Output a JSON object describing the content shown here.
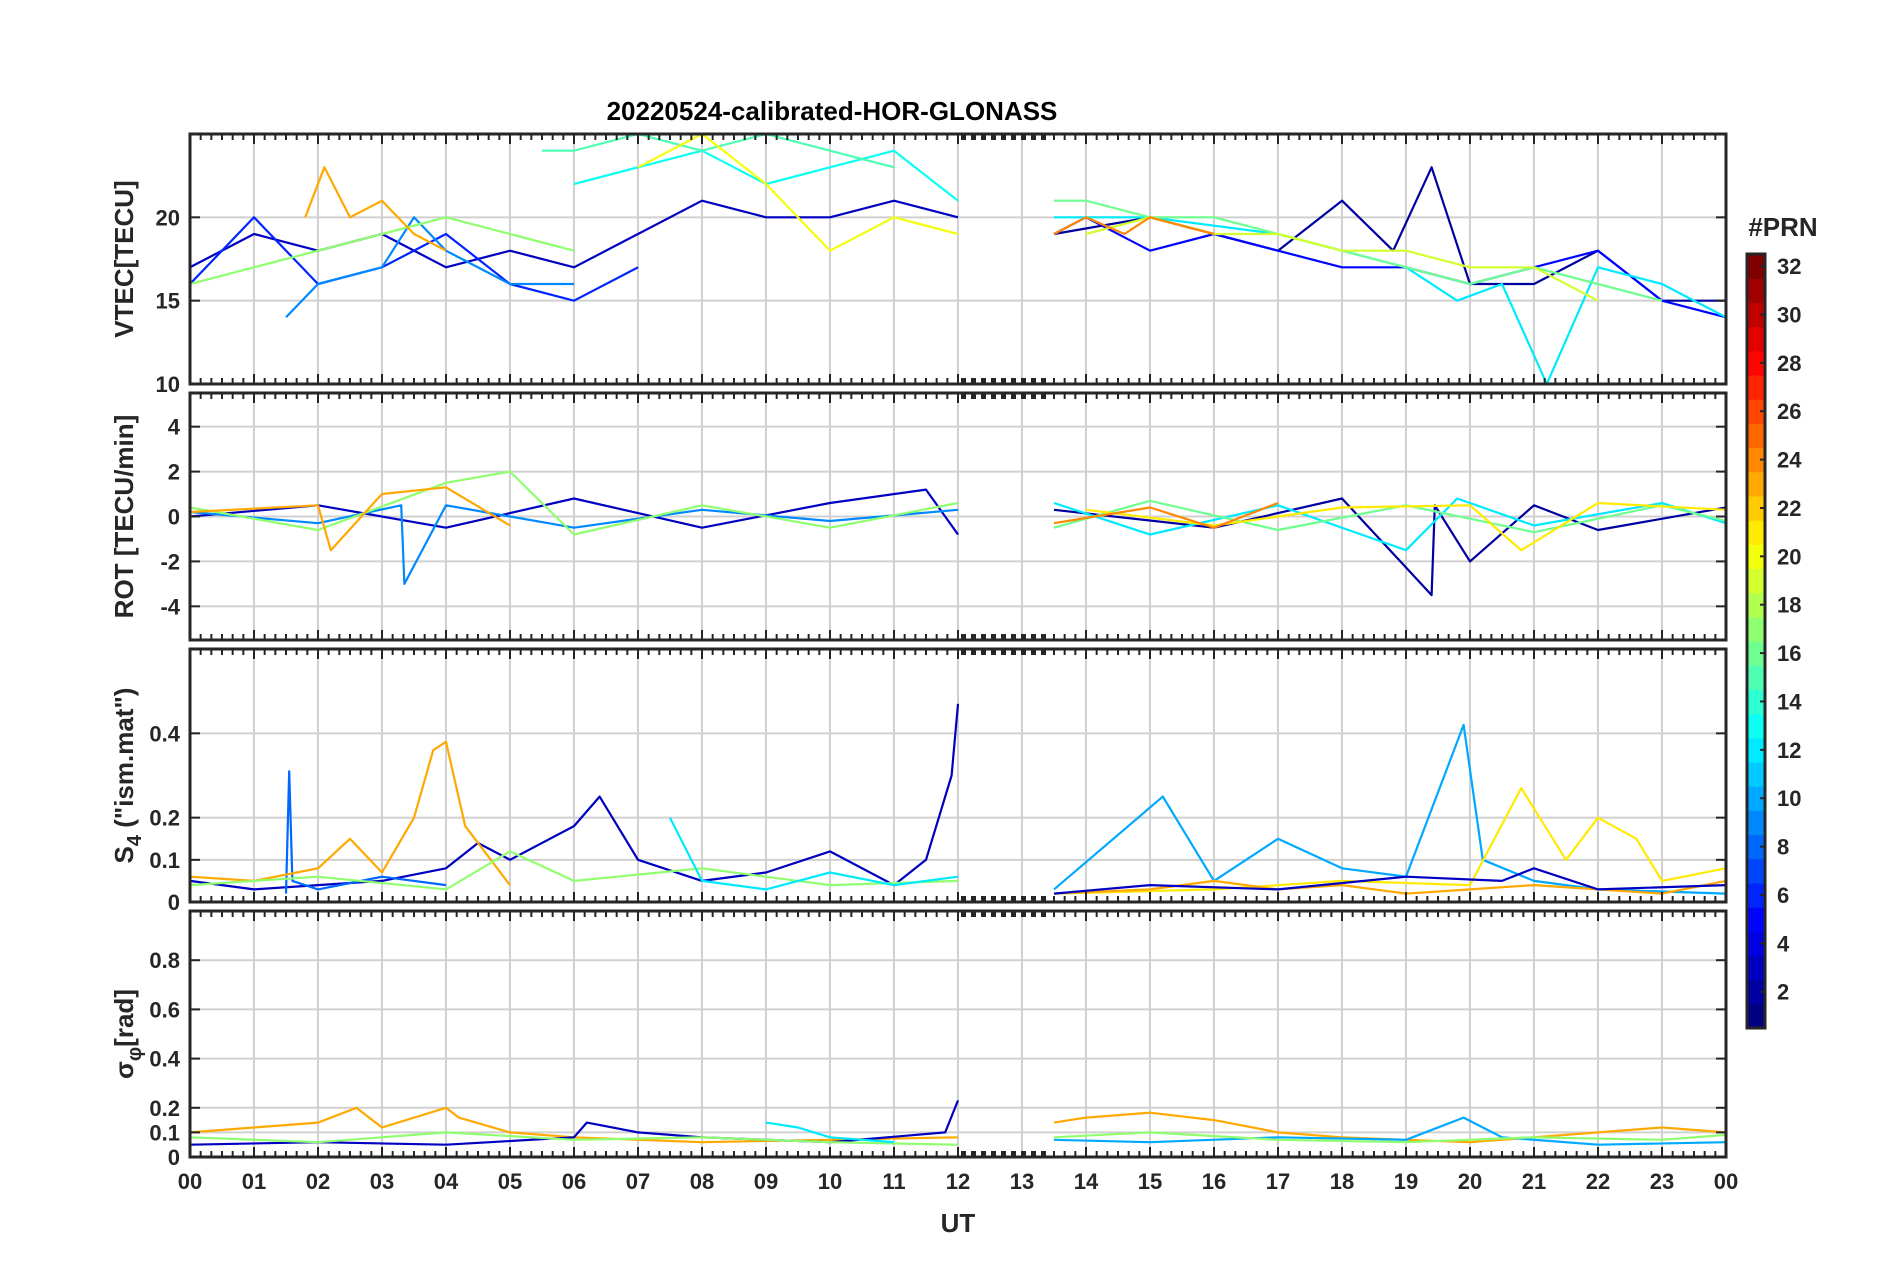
{
  "chart_data": {
    "type": "line",
    "title": "20220524-calibrated-HOR-GLONASS",
    "xlabel": "UT",
    "x_ticks": [
      "00",
      "01",
      "02",
      "03",
      "04",
      "05",
      "06",
      "07",
      "08",
      "09",
      "10",
      "11",
      "12",
      "13",
      "14",
      "15",
      "16",
      "17",
      "18",
      "19",
      "20",
      "21",
      "22",
      "23",
      "00"
    ],
    "xlim": [
      0,
      24
    ],
    "data_gap_hours": [
      12,
      13.5
    ],
    "colorbar": {
      "label": "#PRN",
      "range": [
        1,
        32
      ],
      "ticks": [
        "32",
        "30",
        "28",
        "26",
        "24",
        "22",
        "20",
        "18",
        "16",
        "14",
        "12",
        "10",
        "8",
        "6",
        "4",
        "2"
      ]
    },
    "panels": [
      {
        "ylabel": "VTEC[TECU]",
        "ylim": [
          10,
          25
        ],
        "y_ticks": [
          "20",
          "15",
          "10"
        ],
        "tick_values": [
          20,
          15,
          10
        ],
        "series": [
          {
            "prn": 3,
            "x": [
              0,
              1,
              2,
              3,
              4,
              5,
              6,
              7,
              8,
              9,
              10,
              11,
              12
            ],
            "values": [
              17,
              19,
              18,
              19,
              17,
              18,
              17,
              19,
              21,
              20,
              20,
              21,
              20
            ]
          },
          {
            "prn": 6,
            "x": [
              0,
              1,
              2,
              3,
              4,
              5,
              6,
              7
            ],
            "values": [
              16,
              20,
              16,
              17,
              19,
              16,
              15,
              17
            ]
          },
          {
            "prn": 9,
            "x": [
              1.5,
              2,
              3,
              3.5,
              4,
              5,
              6
            ],
            "values": [
              14,
              16,
              17,
              20,
              18,
              16,
              16
            ]
          },
          {
            "prn": 13,
            "x": [
              6,
              7,
              8,
              9,
              10,
              11,
              12
            ],
            "values": [
              22,
              23,
              24,
              22,
              23,
              24,
              21
            ]
          },
          {
            "prn": 15,
            "x": [
              5.5,
              6,
              7,
              8,
              9,
              10,
              11
            ],
            "values": [
              24,
              24,
              25,
              24,
              25,
              24,
              23
            ]
          },
          {
            "prn": 17,
            "x": [
              0,
              1,
              2,
              3,
              4,
              5,
              6
            ],
            "values": [
              16,
              17,
              18,
              19,
              20,
              19,
              18
            ]
          },
          {
            "prn": 20,
            "x": [
              7,
              8,
              9,
              10,
              11,
              12
            ],
            "values": [
              23,
              25,
              22,
              18,
              20,
              19
            ]
          },
          {
            "prn": 23,
            "x": [
              1.8,
              2.1,
              2.5,
              3,
              3.5,
              4
            ],
            "values": [
              20,
              23,
              20,
              21,
              19,
              18
            ]
          },
          {
            "prn": 2,
            "x": [
              13.5,
              15,
              16,
              17,
              18,
              18.8,
              19.4,
              20,
              21,
              22,
              23,
              24
            ],
            "values": [
              19,
              20,
              19,
              18,
              21,
              18,
              23,
              16,
              16,
              18,
              15,
              15
            ]
          },
          {
            "prn": 5,
            "x": [
              13.5,
              14,
              15,
              16,
              17,
              18,
              19,
              20,
              21,
              22,
              23,
              24
            ],
            "values": [
              19,
              20,
              18,
              19,
              18,
              17,
              17,
              16,
              17,
              18,
              15,
              14
            ]
          },
          {
            "prn": 12,
            "x": [
              13.5,
              15,
              17,
              18,
              19,
              19.8,
              20.5,
              21.2,
              22,
              23,
              24
            ],
            "values": [
              20,
              20,
              19,
              18,
              17,
              15,
              16,
              10,
              17,
              16,
              14
            ]
          },
          {
            "prn": 16,
            "x": [
              13.5,
              14,
              15,
              16,
              17,
              18,
              19,
              20,
              21,
              22,
              23
            ],
            "values": [
              21,
              21,
              20,
              20,
              19,
              18,
              17,
              16,
              17,
              16,
              15
            ]
          },
          {
            "prn": 19,
            "x": [
              14,
              15,
              16,
              17,
              18,
              19,
              20,
              21,
              22
            ],
            "values": [
              19,
              20,
              19,
              19,
              18,
              18,
              17,
              17,
              15
            ]
          },
          {
            "prn": 24,
            "x": [
              13.5,
              14,
              14.6,
              15,
              16
            ],
            "values": [
              19,
              20,
              19,
              20,
              19
            ]
          }
        ]
      },
      {
        "ylabel": "ROT [TECU/min]",
        "ylim": [
          -5.5,
          5.5
        ],
        "y_ticks": [
          "4",
          "2",
          "0",
          "-2",
          "-4"
        ],
        "tick_values": [
          4,
          2,
          0,
          -2,
          -4
        ],
        "series": [
          {
            "prn": 3,
            "x": [
              0,
              2,
              4,
              6,
              8,
              10,
              11.5,
              12
            ],
            "values": [
              0,
              0.5,
              -0.5,
              0.8,
              -0.5,
              0.6,
              1.2,
              -0.8
            ]
          },
          {
            "prn": 9,
            "x": [
              0,
              2,
              3.3,
              3.35,
              4,
              6,
              8,
              10,
              12
            ],
            "values": [
              0.2,
              -0.3,
              0.5,
              -3,
              0.5,
              -0.5,
              0.3,
              -0.2,
              0.3
            ]
          },
          {
            "prn": 17,
            "x": [
              0,
              2,
              4,
              5,
              6,
              8,
              10,
              12
            ],
            "values": [
              0.4,
              -0.6,
              1.5,
              2,
              -0.8,
              0.5,
              -0.5,
              0.6
            ]
          },
          {
            "prn": 23,
            "x": [
              0,
              2,
              2.2,
              3,
              4,
              5
            ],
            "values": [
              0.2,
              0.5,
              -1.5,
              1,
              1.3,
              -0.4
            ]
          },
          {
            "prn": 2,
            "x": [
              13.5,
              16,
              18,
              19.4,
              19.45,
              20,
              21,
              22,
              24
            ],
            "values": [
              0.3,
              -0.5,
              0.8,
              -3.5,
              0.5,
              -2,
              0.5,
              -0.6,
              0.4
            ]
          },
          {
            "prn": 12,
            "x": [
              13.5,
              15,
              17,
              19,
              19.8,
              21,
              23,
              24
            ],
            "values": [
              0.6,
              -0.8,
              0.5,
              -1.5,
              0.8,
              -0.4,
              0.6,
              -0.3
            ]
          },
          {
            "prn": 16,
            "x": [
              13.5,
              15,
              17,
              19,
              21,
              23,
              24
            ],
            "values": [
              -0.5,
              0.7,
              -0.6,
              0.5,
              -0.7,
              0.5,
              -0.2
            ]
          },
          {
            "prn": 21,
            "x": [
              14,
              16,
              18,
              20,
              20.8,
              22,
              24
            ],
            "values": [
              0.3,
              -0.4,
              0.4,
              0.5,
              -1.5,
              0.6,
              0.3
            ]
          },
          {
            "prn": 24,
            "x": [
              13.5,
              15,
              16,
              17
            ],
            "values": [
              -0.3,
              0.4,
              -0.5,
              0.6
            ]
          }
        ]
      },
      {
        "ylabel": "S4 (\"ism.mat\")",
        "ylabel_base": "S",
        "ylabel_sub": "4",
        "ylabel_tail": " (\"ism.mat\")",
        "ylim": [
          0,
          0.6
        ],
        "y_ticks": [
          "0.4",
          "0.2",
          "0.1",
          "0"
        ],
        "tick_values": [
          0.4,
          0.2,
          0.1,
          0
        ],
        "series": [
          {
            "prn": 3,
            "x": [
              0,
              1,
              2,
              3,
              4,
              4.5,
              5,
              6,
              6.4,
              7,
              8,
              9,
              10,
              11,
              11.5,
              11.9,
              12
            ],
            "values": [
              0.05,
              0.03,
              0.04,
              0.05,
              0.08,
              0.14,
              0.1,
              0.18,
              0.25,
              0.1,
              0.05,
              0.07,
              0.12,
              0.04,
              0.1,
              0.3,
              0.47
            ]
          },
          {
            "prn": 8,
            "x": [
              1.5,
              1.55,
              1.6,
              2,
              3,
              4
            ],
            "values": [
              0.02,
              0.31,
              0.05,
              0.03,
              0.06,
              0.04
            ]
          },
          {
            "prn": 23,
            "x": [
              0,
              1,
              2,
              2.5,
              3,
              3.5,
              3.8,
              4,
              4.3,
              5
            ],
            "values": [
              0.06,
              0.05,
              0.08,
              0.15,
              0.07,
              0.2,
              0.36,
              0.38,
              0.18,
              0.04
            ]
          },
          {
            "prn": 17,
            "x": [
              0,
              2,
              4,
              5,
              6,
              8,
              10,
              12
            ],
            "values": [
              0.04,
              0.06,
              0.03,
              0.12,
              0.05,
              0.08,
              0.04,
              0.05
            ]
          },
          {
            "prn": 12,
            "x": [
              7.5,
              8,
              9,
              10,
              11,
              12
            ],
            "values": [
              0.2,
              0.05,
              0.03,
              0.07,
              0.04,
              0.06
            ]
          },
          {
            "prn": 10,
            "x": [
              13.5,
              15.2,
              16,
              17,
              18,
              19,
              19.6,
              19.9,
              20.2,
              21,
              22,
              24
            ],
            "values": [
              0.03,
              0.25,
              0.05,
              0.15,
              0.08,
              0.06,
              0.3,
              0.42,
              0.1,
              0.05,
              0.03,
              0.02
            ]
          },
          {
            "prn": 21,
            "x": [
              13.5,
              16,
              18,
              20,
              20.8,
              21.5,
              22,
              22.6,
              23,
              24
            ],
            "values": [
              0.02,
              0.03,
              0.05,
              0.04,
              0.27,
              0.1,
              0.2,
              0.15,
              0.05,
              0.08
            ]
          },
          {
            "prn": 23,
            "x": [
              13.5,
              15,
              16,
              17,
              18,
              19,
              20,
              21,
              22,
              23,
              24
            ],
            "values": [
              0.02,
              0.03,
              0.05,
              0.03,
              0.04,
              0.02,
              0.03,
              0.04,
              0.03,
              0.02,
              0.05
            ]
          },
          {
            "prn": 3,
            "x": [
              13.5,
              15,
              17,
              19,
              20.5,
              21,
              22,
              24
            ],
            "values": [
              0.02,
              0.04,
              0.03,
              0.06,
              0.05,
              0.08,
              0.03,
              0.04
            ]
          }
        ]
      },
      {
        "ylabel": "σφ[rad]",
        "ylabel_base": "σ",
        "ylabel_sub": "φ",
        "ylabel_tail": "[rad]",
        "ylim": [
          0,
          1
        ],
        "y_ticks": [
          "0.8",
          "0.6",
          "0.4",
          "0.2",
          "0.1",
          "0"
        ],
        "tick_values": [
          0.8,
          0.6,
          0.4,
          0.2,
          0.1,
          0
        ],
        "series": [
          {
            "prn": 23,
            "x": [
              0,
              1,
              2,
              2.6,
              3,
              4,
              4.2,
              5,
              6,
              8,
              10,
              12
            ],
            "values": [
              0.1,
              0.12,
              0.14,
              0.2,
              0.12,
              0.2,
              0.16,
              0.1,
              0.08,
              0.06,
              0.07,
              0.08
            ]
          },
          {
            "prn": 3,
            "x": [
              0,
              2,
              4,
              6,
              6.2,
              7,
              8,
              10,
              11.8,
              12
            ],
            "values": [
              0.05,
              0.06,
              0.05,
              0.08,
              0.14,
              0.1,
              0.08,
              0.06,
              0.1,
              0.23
            ]
          },
          {
            "prn": 17,
            "x": [
              0,
              2,
              4,
              6,
              8,
              10,
              12
            ],
            "values": [
              0.08,
              0.06,
              0.1,
              0.07,
              0.08,
              0.06,
              0.05
            ]
          },
          {
            "prn": 12,
            "x": [
              9,
              9.5,
              10,
              11
            ],
            "values": [
              0.14,
              0.12,
              0.08,
              0.06
            ]
          },
          {
            "prn": 23,
            "x": [
              13.5,
              14,
              15,
              16,
              17,
              18,
              19,
              20,
              21,
              22,
              23,
              24
            ],
            "values": [
              0.14,
              0.16,
              0.18,
              0.15,
              0.1,
              0.08,
              0.07,
              0.06,
              0.08,
              0.1,
              0.12,
              0.1
            ]
          },
          {
            "prn": 10,
            "x": [
              13.5,
              15,
              17,
              19,
              19.9,
              20.5,
              22,
              24
            ],
            "values": [
              0.07,
              0.06,
              0.08,
              0.07,
              0.16,
              0.08,
              0.05,
              0.06
            ]
          },
          {
            "prn": 17,
            "x": [
              13.5,
              15,
              17,
              19,
              21,
              23,
              24
            ],
            "values": [
              0.08,
              0.1,
              0.07,
              0.06,
              0.08,
              0.07,
              0.09
            ]
          }
        ]
      }
    ]
  }
}
